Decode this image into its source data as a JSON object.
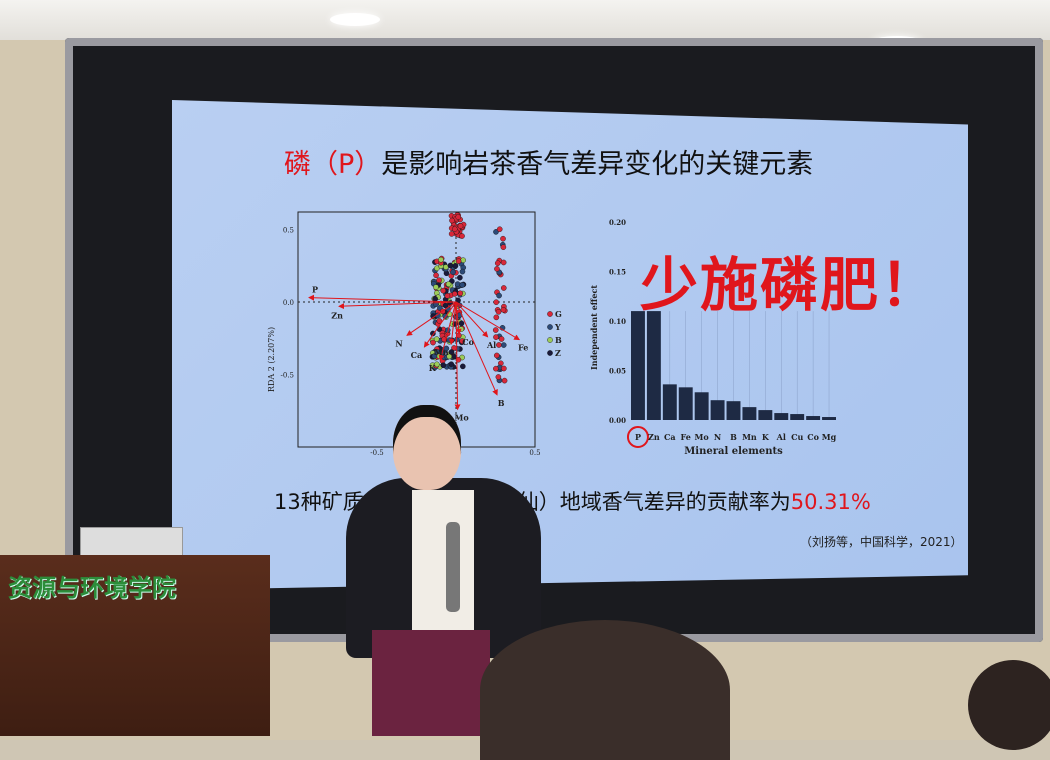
{
  "slide": {
    "title_red": "磷（P）",
    "title_rest": "是影响岩茶香气差异变化的关键元素",
    "slogan": "少施磷肥！",
    "bottom_visible_left": "13种矿质养",
    "bottom_visible_right": "茶（水仙）地域香气差异的贡献率为",
    "bottom_percent": "50.31%",
    "citation": "（刘扬等，中国科学，2021）"
  },
  "podium": {
    "sign": "资源与环境学院"
  },
  "colors": {
    "slide_bg": "#b0c9f0",
    "accent_red": "#e0161c"
  },
  "chart_data": [
    {
      "type": "scatter",
      "ylabel": "RDA 2 (2.207%)",
      "xticks": [
        "-0.5",
        "0.0",
        "0.5"
      ],
      "yticks": [
        "0.5",
        "0.0",
        "-0.5"
      ],
      "xlim": [
        -1.0,
        0.5
      ],
      "ylim": [
        -1.0,
        0.62
      ],
      "legend": [
        "G",
        "Y",
        "B",
        "Z"
      ],
      "legend_colors": [
        "#d8283a",
        "#2c4a78",
        "#9ccc5a",
        "#1a1a3a"
      ],
      "legend_placement": "right",
      "loadings": [
        {
          "name": "P",
          "x": -0.93,
          "y": 0.03
        },
        {
          "name": "Zn",
          "x": -0.74,
          "y": -0.03
        },
        {
          "name": "N",
          "x": -0.31,
          "y": -0.23
        },
        {
          "name": "Ca",
          "x": -0.2,
          "y": -0.31
        },
        {
          "name": "K",
          "x": -0.1,
          "y": -0.4
        },
        {
          "name": "Co",
          "x": 0.02,
          "y": -0.22
        },
        {
          "name": "Mn",
          "x": -0.03,
          "y": -0.29
        },
        {
          "name": "Mo",
          "x": 0.01,
          "y": -0.74
        },
        {
          "name": "B",
          "x": 0.26,
          "y": -0.64
        },
        {
          "name": "Al",
          "x": 0.2,
          "y": -0.24
        },
        {
          "name": "Fe",
          "x": 0.4,
          "y": -0.26
        }
      ]
    },
    {
      "type": "bar",
      "xlabel": "Mineral elements",
      "ylabel": "Independent effect",
      "categories": [
        "P",
        "Zn",
        "Ca",
        "Fe",
        "Mo",
        "N",
        "B",
        "Mn",
        "K",
        "Al",
        "Cu",
        "Co",
        "Mg"
      ],
      "values": [
        0.11,
        0.11,
        0.036,
        0.033,
        0.028,
        0.02,
        0.019,
        0.013,
        0.01,
        0.007,
        0.006,
        0.004,
        0.003
      ],
      "yticks": [
        "0.00",
        "0.05",
        "0.10",
        "0.15",
        "0.20"
      ],
      "ylim": [
        0,
        0.2
      ],
      "highlight": "P"
    }
  ]
}
